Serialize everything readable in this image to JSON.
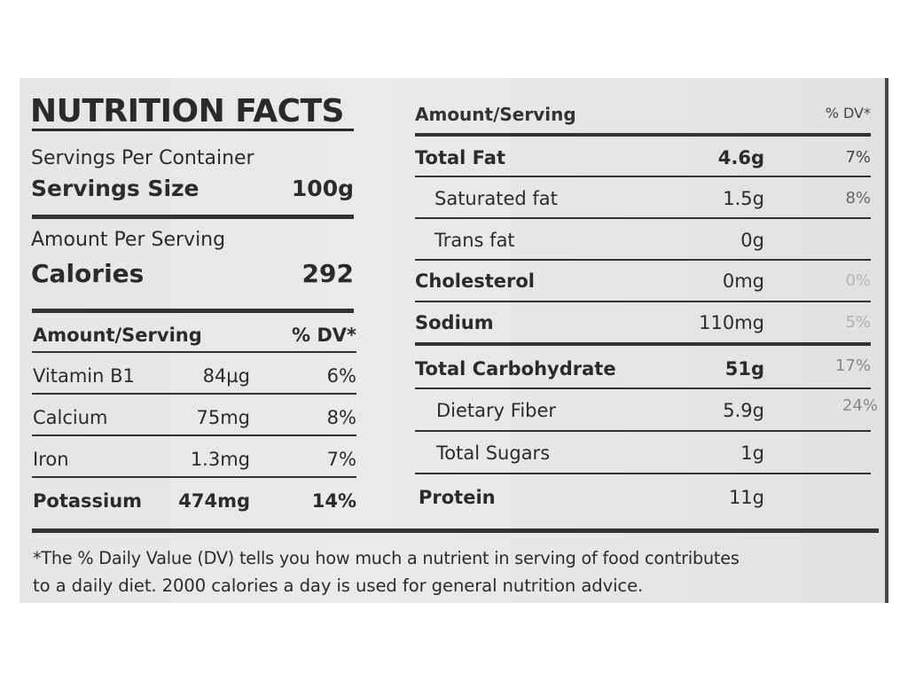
{
  "left": {
    "title": "NUTRITION FACTS",
    "servings_per_container": "Servings Per Container",
    "serving_size_label": "Servings Size",
    "serving_size_value": "100g",
    "amount_per_serving": "Amount Per Serving",
    "calories_label": "Calories",
    "calories_value": "292",
    "table_header": {
      "amount": "Amount/Serving",
      "dv": "% DV*"
    },
    "rows": [
      {
        "name": "Vitamin B1",
        "amount": "84µg",
        "dv": "6%"
      },
      {
        "name": "Calcium",
        "amount": "75mg",
        "dv": "8%"
      },
      {
        "name": "Iron",
        "amount": "1.3mg",
        "dv": "7%"
      },
      {
        "name": "Potassium",
        "amount": "474mg",
        "dv": "14%"
      }
    ]
  },
  "right": {
    "header": {
      "amount": "Amount/Serving",
      "dv": "% DV*"
    },
    "rows": [
      {
        "name": "Total Fat",
        "amount": "4.6g",
        "dv": "7%"
      },
      {
        "name": "Saturated fat",
        "amount": "1.5g",
        "dv": "8%"
      },
      {
        "name": "Trans fat",
        "amount": "0g",
        "dv": ""
      },
      {
        "name": "Cholesterol",
        "amount": "0mg",
        "dv": "0%"
      },
      {
        "name": "Sodium",
        "amount": "110mg",
        "dv": "5%"
      },
      {
        "name": "Total Carbohydrate",
        "amount": "51g",
        "dv": "17%"
      },
      {
        "name": "Dietary Fiber",
        "amount": "5.9g",
        "dv": "24%"
      },
      {
        "name": "Total Sugars",
        "amount": "1g",
        "dv": ""
      },
      {
        "name": "Protein",
        "amount": "11g",
        "dv": ""
      }
    ]
  },
  "footnote": {
    "line1": "*The % Daily Value (DV) tells you how much a nutrient in serving of food contributes",
    "line2": "to a daily diet. 2000 calories a day is used for general nutrition advice."
  }
}
